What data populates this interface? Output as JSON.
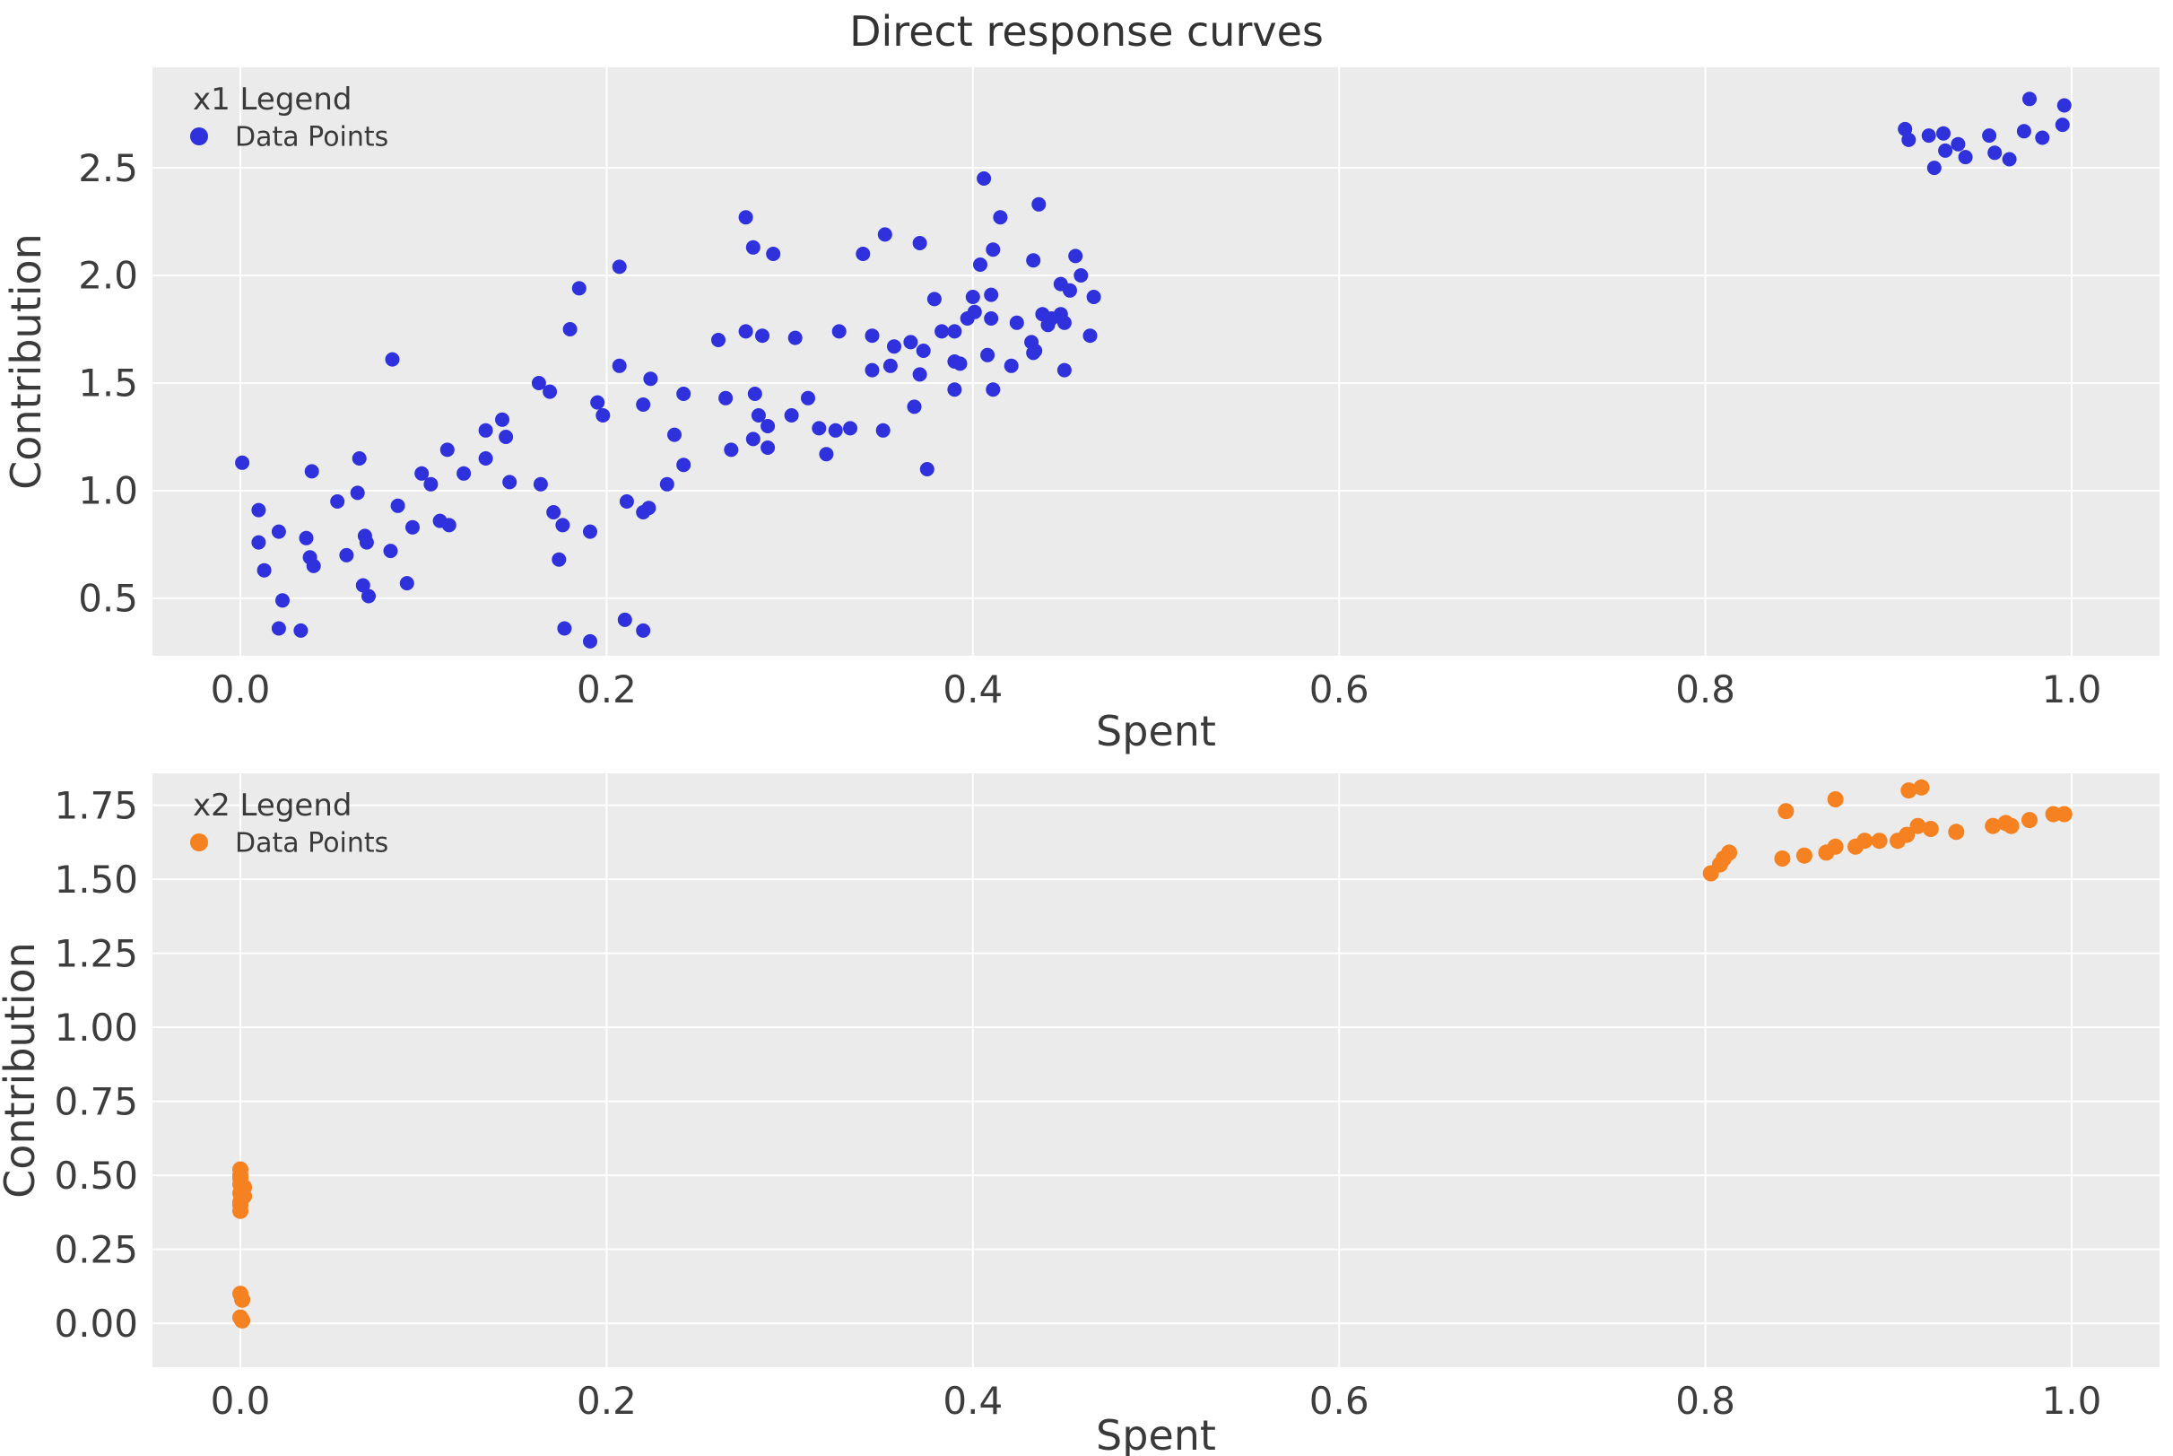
{
  "title": "Direct response curves",
  "colors": {
    "background": "#ffffff",
    "plot_background": "#ebebeb",
    "grid": "#ffffff",
    "text": "#3a3a3a",
    "blue": "#2e31dc",
    "orange": "#f58120"
  },
  "chart_data": [
    {
      "type": "scatter",
      "name": "x1",
      "xlabel": "Spent",
      "ylabel": "Contribution",
      "xlim": [
        -0.048,
        1.048
      ],
      "ylim": [
        0.233,
        2.967
      ],
      "grid": true,
      "legend_position": "upper left",
      "legend": {
        "title": "x1 Legend",
        "entries": [
          {
            "label": "Data Points",
            "color": "#2e31dc"
          }
        ]
      },
      "xticks": [
        0.0,
        0.2,
        0.4,
        0.6,
        0.8,
        1.0
      ],
      "xtick_labels": [
        "0.0",
        "0.2",
        "0.4",
        "0.6",
        "0.8",
        "1.0"
      ],
      "yticks": [
        0.5,
        1.0,
        1.5,
        2.0,
        2.5
      ],
      "ytick_labels": [
        "0.5",
        "1.0",
        "1.5",
        "2.0",
        "2.5"
      ],
      "series": [
        {
          "name": "Data Points",
          "color": "#2e31dc",
          "marker_radius": 8,
          "points": [
            [
              0.001,
              1.13
            ],
            [
              0.039,
              1.09
            ],
            [
              0.065,
              1.15
            ],
            [
              0.064,
              0.99
            ],
            [
              0.053,
              0.95
            ],
            [
              0.01,
              0.91
            ],
            [
              0.021,
              0.81
            ],
            [
              0.01,
              0.76
            ],
            [
              0.036,
              0.78
            ],
            [
              0.038,
              0.69
            ],
            [
              0.04,
              0.65
            ],
            [
              0.013,
              0.63
            ],
            [
              0.058,
              0.7
            ],
            [
              0.068,
              0.79
            ],
            [
              0.069,
              0.76
            ],
            [
              0.082,
              0.72
            ],
            [
              0.067,
              0.56
            ],
            [
              0.07,
              0.51
            ],
            [
              0.023,
              0.49
            ],
            [
              0.091,
              0.57
            ],
            [
              0.021,
              0.36
            ],
            [
              0.033,
              0.35
            ],
            [
              0.086,
              0.93
            ],
            [
              0.094,
              0.83
            ],
            [
              0.109,
              0.86
            ],
            [
              0.114,
              0.84
            ],
            [
              0.099,
              1.08
            ],
            [
              0.104,
              1.03
            ],
            [
              0.122,
              1.08
            ],
            [
              0.113,
              1.19
            ],
            [
              0.134,
              1.28
            ],
            [
              0.145,
              1.25
            ],
            [
              0.143,
              1.33
            ],
            [
              0.134,
              1.15
            ],
            [
              0.147,
              1.04
            ],
            [
              0.083,
              1.61
            ],
            [
              0.163,
              1.5
            ],
            [
              0.169,
              1.46
            ],
            [
              0.195,
              1.41
            ],
            [
              0.198,
              1.35
            ],
            [
              0.22,
              1.4
            ],
            [
              0.242,
              1.45
            ],
            [
              0.265,
              1.43
            ],
            [
              0.281,
              1.45
            ],
            [
              0.283,
              1.35
            ],
            [
              0.288,
              1.3
            ],
            [
              0.301,
              1.35
            ],
            [
              0.31,
              1.43
            ],
            [
              0.316,
              1.29
            ],
            [
              0.325,
              1.28
            ],
            [
              0.333,
              1.29
            ],
            [
              0.28,
              1.24
            ],
            [
              0.268,
              1.19
            ],
            [
              0.288,
              1.2
            ],
            [
              0.32,
              1.17
            ],
            [
              0.237,
              1.26
            ],
            [
              0.242,
              1.12
            ],
            [
              0.223,
              0.92
            ],
            [
              0.233,
              1.03
            ],
            [
              0.211,
              0.95
            ],
            [
              0.351,
              1.28
            ],
            [
              0.368,
              1.39
            ],
            [
              0.39,
              1.47
            ],
            [
              0.375,
              1.1
            ],
            [
              0.164,
              1.03
            ],
            [
              0.171,
              0.9
            ],
            [
              0.176,
              0.84
            ],
            [
              0.191,
              0.81
            ],
            [
              0.174,
              0.68
            ],
            [
              0.22,
              0.9
            ],
            [
              0.21,
              0.4
            ],
            [
              0.22,
              0.35
            ],
            [
              0.177,
              0.36
            ],
            [
              0.191,
              0.3
            ],
            [
              0.207,
              2.04
            ],
            [
              0.185,
              1.94
            ],
            [
              0.18,
              1.75
            ],
            [
              0.207,
              1.58
            ],
            [
              0.224,
              1.52
            ],
            [
              0.276,
              2.27
            ],
            [
              0.28,
              2.13
            ],
            [
              0.291,
              2.1
            ],
            [
              0.352,
              2.19
            ],
            [
              0.34,
              2.1
            ],
            [
              0.371,
              2.15
            ],
            [
              0.415,
              2.27
            ],
            [
              0.379,
              1.89
            ],
            [
              0.41,
              1.8
            ],
            [
              0.261,
              1.7
            ],
            [
              0.276,
              1.74
            ],
            [
              0.285,
              1.72
            ],
            [
              0.303,
              1.71
            ],
            [
              0.327,
              1.74
            ],
            [
              0.345,
              1.72
            ],
            [
              0.357,
              1.67
            ],
            [
              0.366,
              1.69
            ],
            [
              0.373,
              1.65
            ],
            [
              0.383,
              1.74
            ],
            [
              0.355,
              1.58
            ],
            [
              0.345,
              1.56
            ],
            [
              0.371,
              1.54
            ],
            [
              0.393,
              1.59
            ],
            [
              0.411,
              1.47
            ],
            [
              0.432,
              1.69
            ],
            [
              0.433,
              1.64
            ],
            [
              0.45,
              1.56
            ],
            [
              0.406,
              2.45
            ],
            [
              0.436,
              2.33
            ],
            [
              0.411,
              2.12
            ],
            [
              0.404,
              2.05
            ],
            [
              0.433,
              2.07
            ],
            [
              0.456,
              2.09
            ],
            [
              0.448,
              1.96
            ],
            [
              0.459,
              2.0
            ],
            [
              0.453,
              1.93
            ],
            [
              0.466,
              1.9
            ],
            [
              0.4,
              1.9
            ],
            [
              0.41,
              1.91
            ],
            [
              0.401,
              1.83
            ],
            [
              0.397,
              1.8
            ],
            [
              0.424,
              1.78
            ],
            [
              0.438,
              1.82
            ],
            [
              0.443,
              1.8
            ],
            [
              0.448,
              1.82
            ],
            [
              0.45,
              1.78
            ],
            [
              0.441,
              1.77
            ],
            [
              0.39,
              1.74
            ],
            [
              0.464,
              1.72
            ],
            [
              0.408,
              1.63
            ],
            [
              0.421,
              1.58
            ],
            [
              0.434,
              1.65
            ],
            [
              0.39,
              1.6
            ],
            [
              0.909,
              2.68
            ],
            [
              0.911,
              2.63
            ],
            [
              0.922,
              2.65
            ],
            [
              0.93,
              2.66
            ],
            [
              0.931,
              2.58
            ],
            [
              0.938,
              2.61
            ],
            [
              0.925,
              2.5
            ],
            [
              0.942,
              2.55
            ],
            [
              0.955,
              2.65
            ],
            [
              0.958,
              2.57
            ],
            [
              0.966,
              2.54
            ],
            [
              0.974,
              2.67
            ],
            [
              0.977,
              2.82
            ],
            [
              0.984,
              2.64
            ],
            [
              0.996,
              2.79
            ],
            [
              0.995,
              2.7
            ]
          ]
        }
      ]
    },
    {
      "type": "scatter",
      "name": "x2",
      "xlabel": "Spent",
      "ylabel": "Contribution",
      "xlim": [
        -0.048,
        1.048
      ],
      "ylim": [
        -0.148,
        1.858
      ],
      "grid": true,
      "legend_position": "upper left",
      "legend": {
        "title": "x2 Legend",
        "entries": [
          {
            "label": "Data Points",
            "color": "#f58120"
          }
        ]
      },
      "xticks": [
        0.0,
        0.2,
        0.4,
        0.6,
        0.8,
        1.0
      ],
      "xtick_labels": [
        "0.0",
        "0.2",
        "0.4",
        "0.6",
        "0.8",
        "1.0"
      ],
      "yticks": [
        0.0,
        0.25,
        0.5,
        0.75,
        1.0,
        1.25,
        1.5,
        1.75
      ],
      "ytick_labels": [
        "0.00",
        "0.25",
        "0.50",
        "0.75",
        "1.00",
        "1.25",
        "1.50",
        "1.75"
      ],
      "series": [
        {
          "name": "Data Points",
          "color": "#f58120",
          "marker_radius": 9,
          "points": [
            [
              0.0,
              0.52
            ],
            [
              0.0,
              0.5
            ],
            [
              0.0,
              0.49
            ],
            [
              0.0,
              0.47
            ],
            [
              0.002,
              0.46
            ],
            [
              0.0,
              0.44
            ],
            [
              0.002,
              0.43
            ],
            [
              0.0,
              0.41
            ],
            [
              0.0,
              0.4
            ],
            [
              0.0,
              0.38
            ],
            [
              0.001,
              0.45
            ],
            [
              0.0,
              0.1
            ],
            [
              0.001,
              0.08
            ],
            [
              0.0,
              0.02
            ],
            [
              0.001,
              0.01
            ],
            [
              0.803,
              1.52
            ],
            [
              0.808,
              1.55
            ],
            [
              0.81,
              1.57
            ],
            [
              0.813,
              1.59
            ],
            [
              0.842,
              1.57
            ],
            [
              0.844,
              1.73
            ],
            [
              0.854,
              1.58
            ],
            [
              0.866,
              1.59
            ],
            [
              0.871,
              1.61
            ],
            [
              0.871,
              1.77
            ],
            [
              0.882,
              1.61
            ],
            [
              0.887,
              1.63
            ],
            [
              0.895,
              1.63
            ],
            [
              0.905,
              1.63
            ],
            [
              0.91,
              1.65
            ],
            [
              0.911,
              1.8
            ],
            [
              0.916,
              1.68
            ],
            [
              0.918,
              1.81
            ],
            [
              0.923,
              1.67
            ],
            [
              0.937,
              1.66
            ],
            [
              0.957,
              1.68
            ],
            [
              0.964,
              1.69
            ],
            [
              0.967,
              1.68
            ],
            [
              0.977,
              1.7
            ],
            [
              0.99,
              1.72
            ],
            [
              0.996,
              1.72
            ]
          ]
        }
      ]
    }
  ]
}
